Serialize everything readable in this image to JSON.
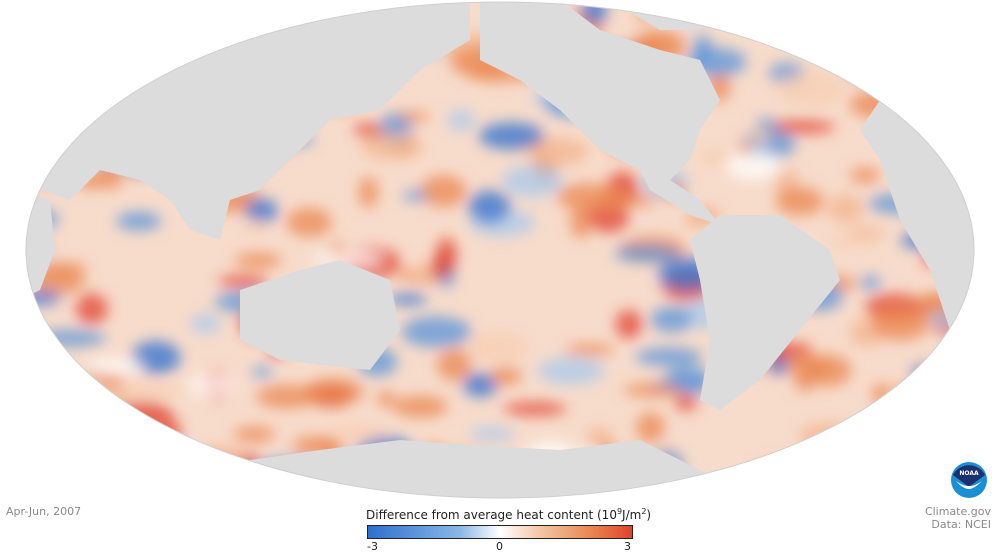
{
  "period_label": "Apr-Jun, 2007",
  "legend": {
    "title": "Difference from average heat content",
    "unit_base": "(10",
    "unit_exp": "9",
    "unit_mid": "J/m",
    "unit_exp2": "2",
    "unit_end": ")",
    "ticks": [
      "-3",
      "0",
      "3"
    ],
    "range": [
      -3,
      3
    ],
    "colors": {
      "low": "#2e6fcf",
      "mid": "#ffffff",
      "high": "#e0422b"
    }
  },
  "credits": {
    "source": "Climate.gov",
    "data": "Data: NCEI"
  },
  "logo": {
    "text": "NOAA"
  },
  "colors": {
    "land": "#dcdcdc",
    "warm": "#e9854f",
    "cool": "#5a93d8"
  }
}
